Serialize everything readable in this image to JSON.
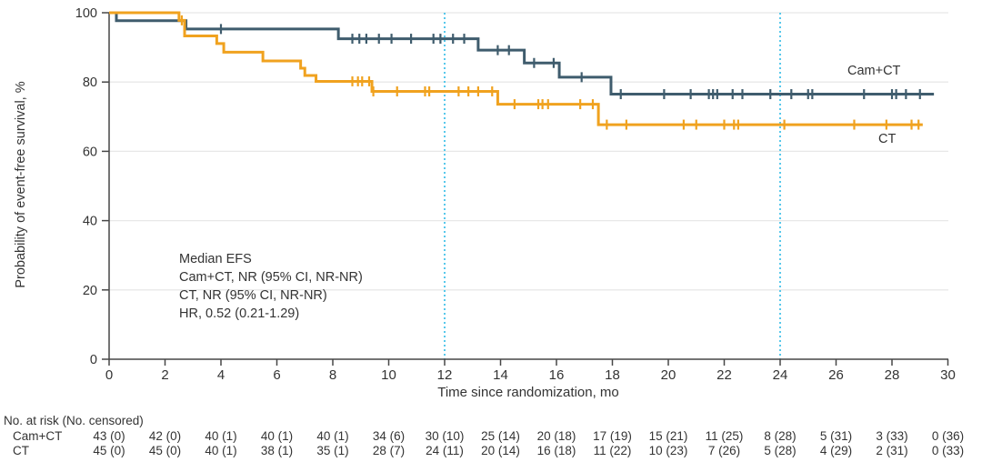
{
  "chart_data": {
    "type": "line",
    "subtype": "kaplan-meier-step",
    "title": "",
    "xlabel": "Time since randomization, mo",
    "ylabel": "Probability of event-free survival, %",
    "xlim": [
      0,
      30
    ],
    "ylim": [
      0,
      100
    ],
    "xticks": [
      0,
      2,
      4,
      6,
      8,
      10,
      12,
      14,
      16,
      18,
      20,
      22,
      24,
      26,
      28,
      30
    ],
    "yticks": [
      0,
      20,
      40,
      60,
      80,
      100
    ],
    "grid": "horizontal-light",
    "grid_color": "#e8e8e8",
    "axis_color": "#474747",
    "text_color": "#333333",
    "reference_lines_x": [
      12,
      24
    ],
    "reference_line_color": "#45c2e9",
    "legend_position": "right-of-curves",
    "series": [
      {
        "name": "Cam+CT",
        "color": "#3f5c6d",
        "steps": [
          [
            0,
            100
          ],
          [
            0.26,
            97.7
          ],
          [
            2.75,
            95.3
          ],
          [
            8.2,
            92.5
          ],
          [
            13.2,
            89.2
          ],
          [
            14.85,
            85.5
          ],
          [
            16.1,
            81.4
          ],
          [
            17.95,
            76.5
          ]
        ],
        "end_x": 29.5,
        "censor_x": [
          4.0,
          8.7,
          8.95,
          9.2,
          9.65,
          10.1,
          10.8,
          11.6,
          11.85,
          12.3,
          12.7,
          13.9,
          14.3,
          15.2,
          15.9,
          16.9,
          18.3,
          19.85,
          20.8,
          21.45,
          21.6,
          21.75,
          22.3,
          22.65,
          23.65,
          24.4,
          25.0,
          25.15,
          27.0,
          28.0,
          28.15,
          28.5,
          29.0
        ]
      },
      {
        "name": "CT",
        "color": "#f0a21f",
        "steps": [
          [
            0,
            100
          ],
          [
            2.5,
            97.8
          ],
          [
            2.7,
            93.3
          ],
          [
            3.85,
            91.1
          ],
          [
            4.1,
            88.6
          ],
          [
            5.5,
            86.1
          ],
          [
            6.85,
            84.0
          ],
          [
            7.0,
            81.9
          ],
          [
            7.4,
            80.2
          ],
          [
            9.4,
            77.3
          ],
          [
            13.9,
            73.6
          ],
          [
            17.5,
            67.7
          ]
        ],
        "end_x": 29.1,
        "censor_x": [
          2.6,
          8.7,
          8.9,
          9.05,
          9.3,
          9.45,
          10.3,
          11.3,
          11.45,
          12.5,
          12.85,
          13.2,
          13.7,
          14.5,
          15.35,
          15.5,
          15.7,
          16.85,
          17.3,
          17.8,
          18.5,
          20.55,
          21.0,
          22.0,
          22.35,
          22.5,
          24.15,
          26.65,
          27.8,
          28.7,
          28.95
        ]
      }
    ],
    "series_labels": {
      "cam_ct": "Cam+CT",
      "ct": "CT"
    },
    "annotation": {
      "line1": "Median EFS",
      "line2": "Cam+CT, NR (95% CI, NR-NR)",
      "line3": "CT, NR (95% CI, NR-NR)",
      "line4": "HR, 0.52 (0.21-1.29)"
    },
    "risk_table": {
      "header": "No. at risk (No. censored)",
      "times": [
        0,
        2,
        4,
        6,
        8,
        10,
        12,
        14,
        16,
        18,
        20,
        22,
        24,
        26,
        28,
        30
      ],
      "rows": [
        {
          "label": "Cam+CT",
          "values": [
            "43 (0)",
            "42 (0)",
            "40 (1)",
            "40 (1)",
            "40 (1)",
            "34 (6)",
            "30 (10)",
            "25 (14)",
            "20 (18)",
            "17 (19)",
            "15 (21)",
            "11 (25)",
            "8 (28)",
            "5 (31)",
            "3 (33)",
            "0 (36)"
          ]
        },
        {
          "label": "CT",
          "values": [
            "45 (0)",
            "45 (0)",
            "40 (1)",
            "38 (1)",
            "35 (1)",
            "28 (7)",
            "24 (11)",
            "20 (14)",
            "16 (18)",
            "11 (22)",
            "10 (23)",
            "7 (26)",
            "5 (28)",
            "4 (29)",
            "2 (31)",
            "0 (33)"
          ]
        }
      ]
    }
  }
}
